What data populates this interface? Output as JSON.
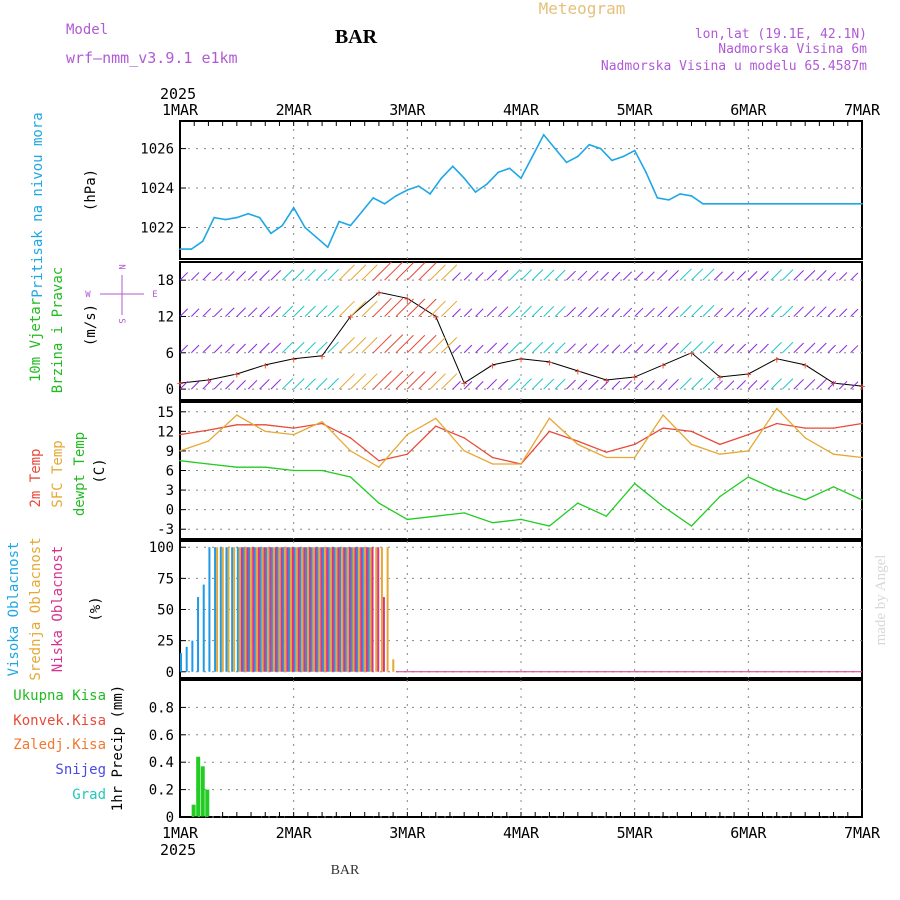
{
  "header": {
    "model_label": "Model",
    "model_name": "wrf—nmm_v3.9.1  e1km",
    "title": "BAR",
    "meteogram": "Meteogram",
    "lonlat": "lon,lat (19.1E, 42.1N)",
    "elevation": "Nadmorska Visina 6m",
    "model_elevation": "Nadmorska Visina u modelu 65.4587m",
    "year_top": "2025",
    "year_bottom": "2025",
    "footer": "BAR",
    "watermark": "made by Angel"
  },
  "colors": {
    "pressure": "#1ea7e6",
    "wind_label": "#22bb22",
    "temp2m": "#e84a3a",
    "sfc": "#e6a833",
    "dewpt": "#22cc22",
    "high_cloud": "#1e9ae6",
    "mid_cloud": "#e6a833",
    "low_cloud": "#d6338f",
    "header_purple": "#b05ad6",
    "meteogram": "#e6c07a"
  },
  "date_ticks": [
    "1MAR",
    "2MAR",
    "3MAR",
    "4MAR",
    "5MAR",
    "6MAR",
    "7MAR"
  ],
  "panels": {
    "pressure": {
      "label": "Pritisak na nivou mora",
      "unit": "(hPa)"
    },
    "wind": {
      "label1": "10m Vjetar",
      "label2": "Brzina i Pravac",
      "unit": "(m/s)",
      "compass_n": "N",
      "compass_w": "W",
      "compass_e": "E",
      "compass_s": "S"
    },
    "temp": {
      "label_2m": "2m Temp",
      "label_sfc": "SFC Temp",
      "label_dewpt": "dewpt Temp",
      "unit": "(C)"
    },
    "cloud": {
      "label_high": "Visoka Oblacnost",
      "label_mid": "Srednja Oblacnost",
      "label_low": "Niska Oblacnost",
      "unit": "(%)"
    },
    "precip": {
      "label_total": "Ukupna Kisa",
      "label_conv": "Konvek.Kisa",
      "label_frz": "Zaledj.Kisa",
      "label_snow": "Snijeg",
      "label_hail": "Grad",
      "unit": "1hr Precip (mm)"
    }
  },
  "chart_data": [
    {
      "type": "line",
      "name": "pressure",
      "x_days": [
        0,
        0.1,
        0.2,
        0.3,
        0.4,
        0.5,
        0.6,
        0.7,
        0.8,
        0.9,
        1.0,
        1.1,
        1.2,
        1.3,
        1.4,
        1.5,
        1.6,
        1.7,
        1.8,
        1.9,
        2.0,
        2.1,
        2.2,
        2.3,
        2.4,
        2.5,
        2.6,
        2.7,
        2.8,
        2.9,
        3.0,
        3.1,
        3.2,
        3.3,
        3.4,
        3.5,
        3.6,
        3.7,
        3.8,
        3.9,
        4.0,
        4.1,
        4.2,
        4.3,
        4.4,
        4.5,
        4.6,
        4.7,
        4.8,
        4.9,
        5.0,
        5.1,
        5.2,
        5.3,
        5.4,
        5.5,
        5.6,
        5.7,
        5.8,
        5.9,
        6.0
      ],
      "values": [
        1020.9,
        1020.9,
        1021.3,
        1022.5,
        1022.4,
        1022.5,
        1022.7,
        1022.5,
        1021.7,
        1022.1,
        1023.0,
        1022.0,
        1021.5,
        1021.0,
        1022.3,
        1022.1,
        1022.8,
        1023.5,
        1023.2,
        1023.6,
        1023.9,
        1024.1,
        1023.7,
        1024.5,
        1025.1,
        1024.5,
        1023.8,
        1024.2,
        1024.8,
        1025.0,
        1024.5,
        1025.6,
        1026.7,
        1026.0,
        1025.3,
        1025.6,
        1026.2,
        1026.0,
        1025.4,
        1025.6,
        1025.9,
        1024.8,
        1023.5,
        1023.4,
        1023.7,
        1023.6,
        1023.2,
        1023.2,
        1023.2,
        1023.2,
        1023.2,
        1023.2,
        1023.2,
        1023.2,
        1023.2,
        1023.2,
        1023.2,
        1023.2,
        1023.2,
        1023.2,
        1023.2
      ],
      "ylim": [
        1020.4,
        1027.4
      ],
      "yticks": [
        1022,
        1024,
        1026
      ]
    },
    {
      "type": "line",
      "name": "wind",
      "ylim": [
        -1.8,
        21
      ],
      "yticks": [
        0,
        6,
        12,
        18
      ],
      "x_days": [
        0,
        0.25,
        0.5,
        0.75,
        1.0,
        1.25,
        1.5,
        1.75,
        2.0,
        2.25,
        2.5,
        2.75,
        3.0,
        3.25,
        3.5,
        3.75,
        4.0,
        4.25,
        4.5,
        4.75,
        5.0,
        5.25,
        5.5,
        5.75,
        6.0
      ],
      "speed": [
        1.0,
        1.5,
        2.5,
        4.0,
        5.0,
        5.5,
        12.0,
        16.0,
        15.0,
        12.0,
        1.0,
        4.0,
        5.0,
        4.5,
        3.0,
        1.5,
        2.0,
        4.0,
        6.0,
        2.0,
        2.5,
        5.0,
        4.0,
        1.0,
        0.5
      ]
    },
    {
      "type": "line",
      "name": "temperature",
      "ylim": [
        -4.5,
        16.5
      ],
      "yticks": [
        -3,
        0,
        3,
        6,
        9,
        12,
        15
      ],
      "x_days": [
        0,
        0.25,
        0.5,
        0.75,
        1.0,
        1.25,
        1.5,
        1.75,
        2.0,
        2.25,
        2.5,
        2.75,
        3.0,
        3.25,
        3.5,
        3.75,
        4.0,
        4.25,
        4.5,
        4.75,
        5.0,
        5.25,
        5.5,
        5.75,
        6.0
      ],
      "series": [
        {
          "name": "2m Temp",
          "values": [
            11.5,
            12.2,
            13.0,
            13.0,
            12.5,
            13.2,
            11.0,
            7.5,
            8.5,
            12.8,
            11.0,
            8.0,
            7.0,
            12.0,
            10.5,
            8.8,
            10.0,
            12.5,
            12.0,
            10.0,
            11.5,
            13.2,
            12.5,
            12.5,
            13.2
          ]
        },
        {
          "name": "SFC Temp",
          "values": [
            9.0,
            10.5,
            14.5,
            12.0,
            11.5,
            13.5,
            9.0,
            6.5,
            11.5,
            14.0,
            9.0,
            7.0,
            7.0,
            14.0,
            10.0,
            8.0,
            8.0,
            14.5,
            10.0,
            8.5,
            9.0,
            15.5,
            11.0,
            8.5,
            8.0
          ]
        },
        {
          "name": "dewpt Temp",
          "values": [
            7.5,
            7.0,
            6.5,
            6.5,
            6.0,
            6.0,
            5.0,
            1.0,
            -1.5,
            -1.0,
            -0.5,
            -2.0,
            -1.5,
            -2.5,
            1.0,
            -1.0,
            4.0,
            0.5,
            -2.5,
            2.0,
            5.0,
            3.0,
            1.5,
            3.5,
            1.5
          ]
        }
      ]
    },
    {
      "type": "bar",
      "name": "cloud",
      "ylim": [
        -5,
        105
      ],
      "yticks": [
        0,
        25,
        50,
        75,
        100
      ],
      "x_days": [
        0.0,
        0.05,
        0.1,
        0.15,
        0.2,
        0.25,
        0.3,
        0.35,
        0.4,
        0.45,
        0.5,
        0.55,
        0.6,
        0.65,
        0.7,
        0.75,
        0.8,
        0.85,
        0.9,
        0.95,
        1.0,
        1.05,
        1.1,
        1.15,
        1.2,
        1.25,
        1.3,
        1.35,
        1.4,
        1.45,
        1.5,
        1.55,
        1.6,
        1.65,
        1.7,
        1.75,
        1.8,
        1.85
      ],
      "series": [
        {
          "name": "high",
          "values": [
            15,
            20,
            25,
            60,
            70,
            100,
            100,
            100,
            100,
            100,
            100,
            100,
            100,
            100,
            100,
            100,
            100,
            100,
            100,
            100,
            100,
            100,
            100,
            100,
            100,
            100,
            100,
            100,
            100,
            100,
            100,
            100,
            100,
            100,
            0,
            0,
            0,
            0
          ]
        },
        {
          "name": "mid",
          "values": [
            0,
            0,
            0,
            0,
            0,
            0,
            100,
            100,
            100,
            100,
            100,
            100,
            100,
            100,
            100,
            100,
            100,
            100,
            100,
            100,
            100,
            100,
            100,
            100,
            100,
            100,
            100,
            100,
            100,
            100,
            100,
            100,
            100,
            100,
            100,
            100,
            100,
            10
          ]
        },
        {
          "name": "low",
          "values": [
            0,
            0,
            0,
            0,
            0,
            0,
            0,
            0,
            0,
            0,
            100,
            100,
            100,
            100,
            100,
            100,
            100,
            100,
            100,
            100,
            100,
            100,
            100,
            100,
            100,
            100,
            100,
            100,
            100,
            100,
            100,
            100,
            100,
            100,
            100,
            60,
            0,
            0
          ]
        }
      ]
    },
    {
      "type": "bar",
      "name": "precip",
      "ylim": [
        0,
        1.0
      ],
      "yticks": [
        0,
        0.2,
        0.4,
        0.6,
        0.8
      ],
      "x_days": [
        0.12,
        0.16,
        0.2,
        0.24
      ],
      "values": [
        0.09,
        0.44,
        0.37,
        0.2
      ]
    }
  ]
}
